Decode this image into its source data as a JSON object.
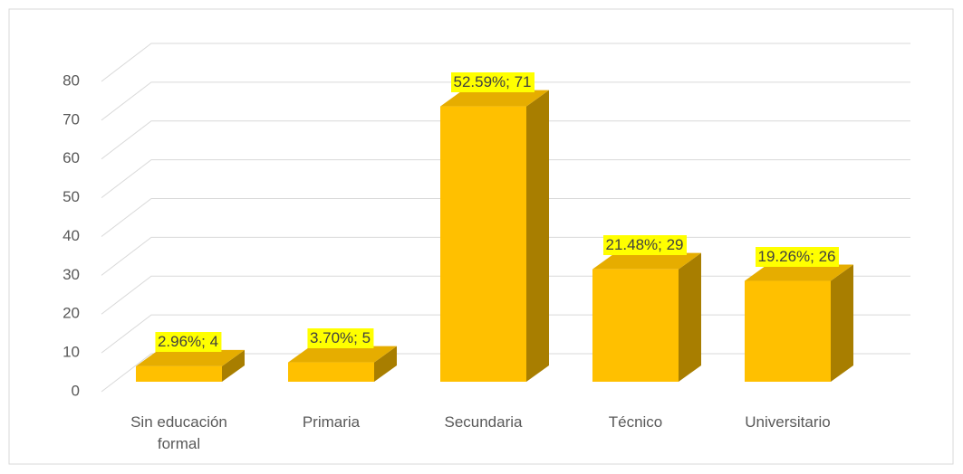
{
  "chart_data": {
    "type": "bar3d",
    "categories": [
      "Sin educación formal",
      "Primaria",
      "Secundaria",
      "Técnico",
      "Universitario"
    ],
    "values": [
      4,
      5,
      71,
      29,
      26
    ],
    "value_labels": [
      "2.96%; 4",
      "3.70%; 5",
      "52.59%; 71",
      "21.48%; 29",
      "19.26%; 26"
    ],
    "color": "#ffc000",
    "ylim": [
      0,
      80
    ],
    "yticks": [
      0,
      10,
      20,
      30,
      40,
      50,
      60,
      70,
      80
    ],
    "grid": true
  }
}
